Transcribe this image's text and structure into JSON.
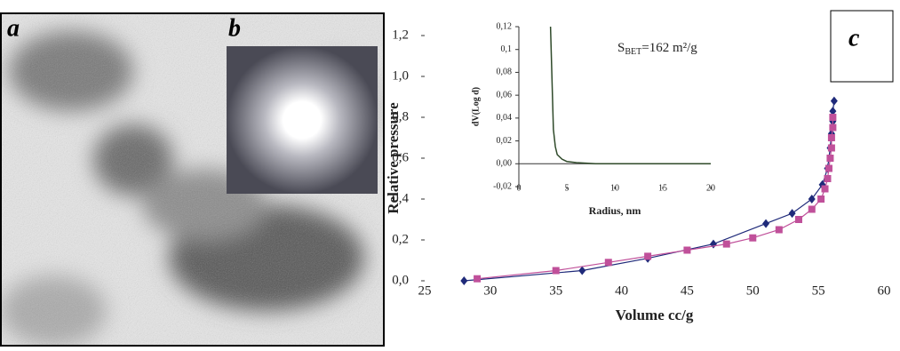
{
  "panel_labels": [
    "a",
    "b",
    "c"
  ],
  "chart_data": [
    {
      "type": "line",
      "xlabel": "Volume cc/g",
      "ylabel": "Relative pressure",
      "xlim": [
        25,
        60
      ],
      "xticks": [
        25,
        30,
        35,
        40,
        45,
        50,
        55,
        60
      ],
      "ylim": [
        0,
        1.2
      ],
      "yticks": [
        {
          "value": 0,
          "label": "0,0"
        },
        {
          "value": 0.2,
          "label": "0,2"
        },
        {
          "value": 0.4,
          "label": "0,4"
        },
        {
          "value": 0.6,
          "label": "0,6"
        },
        {
          "value": 0.8,
          "label": "0,8"
        },
        {
          "value": 1.0,
          "label": "1,0"
        },
        {
          "value": 1.2,
          "label": "1,2"
        }
      ],
      "series": [
        {
          "color": "#1f2a7a",
          "marker": "diamond",
          "x": [
            28,
            37,
            42,
            47,
            51,
            53,
            54.5,
            55.3,
            55.7,
            55.9,
            56,
            56.1,
            56.1,
            56.2
          ],
          "values": [
            0.0,
            0.05,
            0.11,
            0.18,
            0.28,
            0.33,
            0.4,
            0.47,
            0.55,
            0.65,
            0.72,
            0.78,
            0.83,
            0.88
          ]
        },
        {
          "color": "#c0509a",
          "marker": "square",
          "x": [
            29,
            35,
            39,
            42,
            45,
            48,
            50,
            52,
            53.5,
            54.5,
            55.2,
            55.5,
            55.7,
            55.8,
            55.9,
            56,
            56,
            56.1,
            56.1
          ],
          "values": [
            0.01,
            0.05,
            0.09,
            0.12,
            0.15,
            0.18,
            0.21,
            0.25,
            0.3,
            0.35,
            0.4,
            0.45,
            0.5,
            0.55,
            0.6,
            0.65,
            0.7,
            0.75,
            0.8
          ]
        }
      ]
    },
    {
      "type": "line",
      "xlabel": "Radius, nm",
      "ylabel": "dV(Log d)",
      "annotation": [
        "S",
        "BET",
        "=162 m²/g"
      ],
      "xlim": [
        0,
        20
      ],
      "xticks": [
        0,
        5,
        10,
        15,
        20
      ],
      "ylim": [
        -0.02,
        0.12
      ],
      "yticks": [
        {
          "value": -0.02,
          "label": "-0,02"
        },
        {
          "value": 0,
          "label": "0,00"
        },
        {
          "value": 0.02,
          "label": "0,02"
        },
        {
          "value": 0.04,
          "label": "0,04"
        },
        {
          "value": 0.06,
          "label": "0,06"
        },
        {
          "value": 0.08,
          "label": "0,08"
        },
        {
          "value": 0.1,
          "label": "0,1"
        },
        {
          "value": 0.12,
          "label": "0,12"
        }
      ],
      "series": [
        {
          "color": "#2f4a2a",
          "marker": "none",
          "x": [
            3.3,
            3.4,
            3.5,
            3.6,
            3.8,
            4,
            4.5,
            5,
            6,
            8,
            10,
            15,
            20
          ],
          "values": [
            0.12,
            0.09,
            0.06,
            0.03,
            0.015,
            0.008,
            0.004,
            0.002,
            0.001,
            0,
            0,
            0,
            0
          ]
        }
      ]
    }
  ]
}
